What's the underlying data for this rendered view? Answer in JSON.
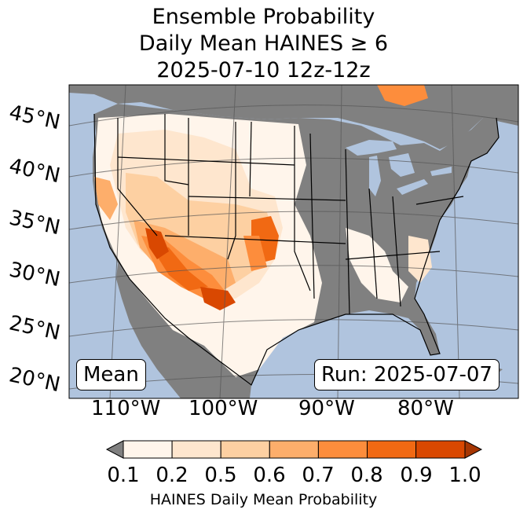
{
  "title": {
    "line1": "Ensemble Probability",
    "line2": "Daily Mean HAINES ≥ 6",
    "line3": "2025-07-10 12z-12z"
  },
  "map": {
    "region": "Contiguous United States",
    "lat_labels": [
      "45°N",
      "40°N",
      "35°N",
      "30°N",
      "25°N",
      "20°N"
    ],
    "lon_labels": [
      "110°W",
      "100°W",
      "90°W",
      "80°W"
    ],
    "stat_box": "Mean",
    "run_box": "Run: 2025-07-07",
    "colors": {
      "ocean": "#b0c4de",
      "land_below": "#808080",
      "grid": "#555555"
    }
  },
  "colorbar": {
    "label": "HAINES Daily Mean Probability",
    "ticks": [
      "0.1",
      "0.2",
      "0.5",
      "0.6",
      "0.7",
      "0.8",
      "0.9",
      "1.0"
    ],
    "under_color": "#808080",
    "colors": [
      "#fff5eb",
      "#fee6ce",
      "#fdd0a2",
      "#fdae6b",
      "#fd8d3c",
      "#f16913",
      "#d94801",
      "#a63603"
    ]
  }
}
